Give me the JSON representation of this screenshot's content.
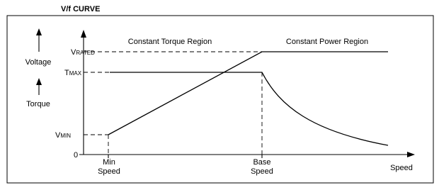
{
  "title": "V/f CURVE",
  "side_labels": {
    "voltage": "Voltage",
    "torque": "Torque"
  },
  "y_labels": {
    "v_rated": {
      "main": "V",
      "sub": "RATED"
    },
    "t_max": {
      "main": "T",
      "sub": "MAX"
    },
    "v_min": {
      "main": "V",
      "sub": "MIN"
    },
    "zero": "0"
  },
  "regions": {
    "constant_torque": "Constant Torque Region",
    "constant_power": "Constant Power Region"
  },
  "x_labels": {
    "min_speed": [
      "Min",
      "Speed"
    ],
    "base_speed": [
      "Base",
      "Speed"
    ],
    "axis": "Speed"
  }
}
